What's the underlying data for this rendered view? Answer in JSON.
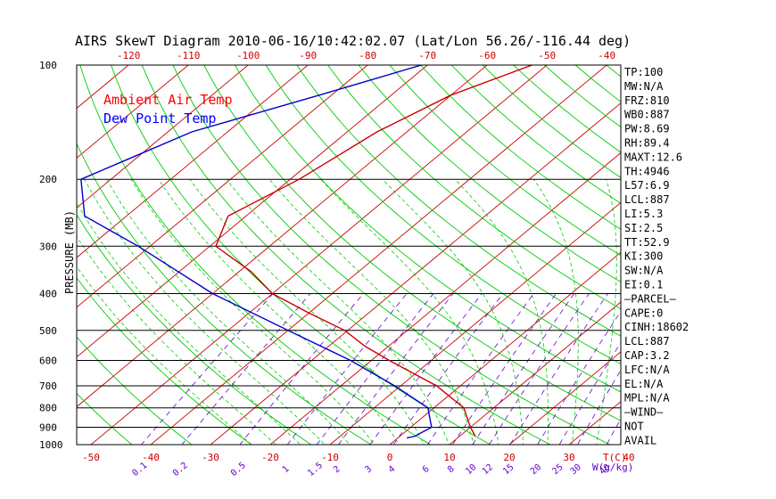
{
  "chart_data": {
    "type": "line",
    "title": "AIRS SkewT Diagram 2010-06-16/10:42:02.07 (Lat/Lon 56.26/-116.44 deg)",
    "ylabel": "PRESSURE (MB)",
    "x_unit_label": "T(C)",
    "mixing_ratio_unit_label": "W(g/kg)",
    "pressure_ticks": [
      100,
      200,
      300,
      400,
      500,
      600,
      700,
      800,
      900,
      1000
    ],
    "top_temp_ticks": [
      -120,
      -110,
      -100,
      -90,
      -80,
      -70,
      -60,
      -50,
      -40
    ],
    "bottom_temp_ticks": [
      -50,
      -40,
      -30,
      -20,
      -10,
      0,
      10,
      20,
      30,
      40
    ],
    "mixing_ratio_ticks": [
      "0.1",
      "0.2",
      "0.5",
      "1",
      "1.5",
      "2",
      "3",
      "4",
      "6",
      "8",
      "10",
      "12",
      "15",
      "20",
      "25",
      "30",
      "40"
    ],
    "legend": [
      {
        "label": "Ambient Air Temp",
        "color": "#ff0000"
      },
      {
        "label": "Dew Point Temp",
        "color": "#0000ff"
      }
    ],
    "series": [
      {
        "name": "Ambient Air Temp",
        "color": "#cc0000",
        "points": [
          {
            "p": 100,
            "t": -52.5
          },
          {
            "p": 120,
            "t": -60
          },
          {
            "p": 150,
            "t": -65
          },
          {
            "p": 200,
            "t": -68.5
          },
          {
            "p": 250,
            "t": -73
          },
          {
            "p": 300,
            "t": -69
          },
          {
            "p": 350,
            "t": -58
          },
          {
            "p": 400,
            "t": -50
          },
          {
            "p": 450,
            "t": -40
          },
          {
            "p": 500,
            "t": -30.5
          },
          {
            "p": 550,
            "t": -24
          },
          {
            "p": 600,
            "t": -17
          },
          {
            "p": 700,
            "t": -4
          },
          {
            "p": 800,
            "t": 5
          },
          {
            "p": 900,
            "t": 10
          },
          {
            "p": 950,
            "t": 12.6
          }
        ]
      },
      {
        "name": "Dew Point Temp",
        "color": "#0000cc",
        "points": [
          {
            "p": 100,
            "t": -71
          },
          {
            "p": 120,
            "t": -82
          },
          {
            "p": 150,
            "t": -96
          },
          {
            "p": 200,
            "t": -105
          },
          {
            "p": 250,
            "t": -97
          },
          {
            "p": 300,
            "t": -82
          },
          {
            "p": 400,
            "t": -60
          },
          {
            "p": 500,
            "t": -40
          },
          {
            "p": 600,
            "t": -23.5
          },
          {
            "p": 700,
            "t": -11
          },
          {
            "p": 800,
            "t": -1
          },
          {
            "p": 900,
            "t": 3.5
          },
          {
            "p": 950,
            "t": 2.5
          },
          {
            "p": 960,
            "t": 1.5
          }
        ]
      }
    ],
    "indices": [
      "TP:100",
      "MW:N/A",
      "FRZ:810",
      "WB0:887",
      "PW:8.69",
      "RH:89.4",
      "MAXT:12.6",
      "TH:4946",
      "L57:6.9",
      "LCL:887",
      "LI:5.3",
      "SI:2.5",
      "TT:52.9",
      "KI:300",
      "SW:N/A",
      "EI:0.1",
      "—PARCEL—",
      "CAPE:0",
      "CINH:18602",
      "LCL:887",
      "CAP:3.2",
      "LFC:N/A",
      "EL:N/A",
      "MPL:N/A",
      "—WIND—",
      "NOT",
      "AVAIL"
    ],
    "colors": {
      "isotherm": "#cc0000",
      "dry_adiabat": "#00cc00",
      "moist_adiabat": "#00cc00",
      "mixing_ratio": "#6600cc",
      "isobar": "#000000"
    }
  }
}
